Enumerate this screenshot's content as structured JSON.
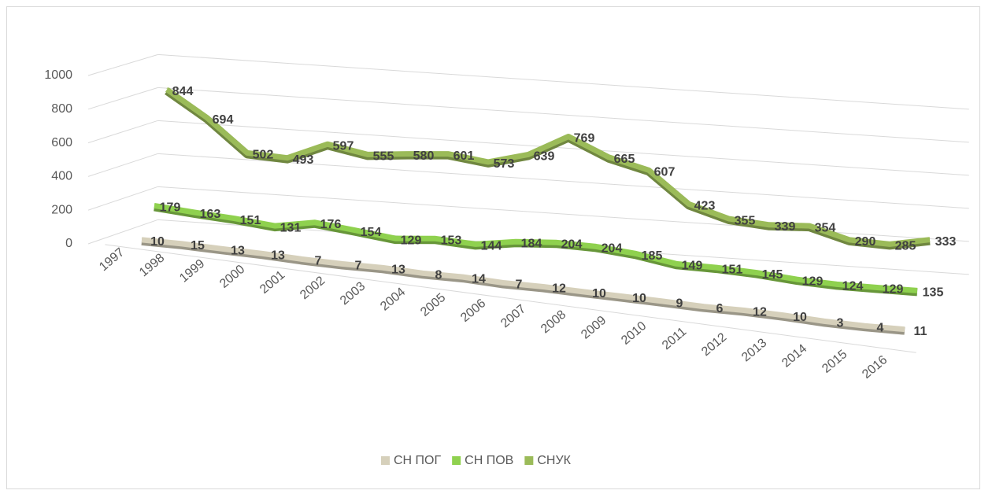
{
  "chart_data": {
    "type": "line3d",
    "categories": [
      "1997",
      "1998",
      "1999",
      "2000",
      "2001",
      "2002",
      "2003",
      "2004",
      "2005",
      "2006",
      "2007",
      "2008",
      "2009",
      "2010",
      "2011",
      "2012",
      "2013",
      "2014",
      "2015",
      "2016"
    ],
    "series": [
      {
        "name": "СН ПОГ",
        "color": "#d6d0bb",
        "values": [
          10,
          15,
          13,
          13,
          7,
          7,
          13,
          8,
          14,
          7,
          12,
          10,
          10,
          9,
          6,
          12,
          10,
          3,
          4,
          11
        ]
      },
      {
        "name": "СН ПОВ",
        "color": "#8fd14f",
        "values": [
          179,
          163,
          151,
          131,
          176,
          154,
          129,
          153,
          144,
          184,
          204,
          204,
          185,
          149,
          151,
          145,
          129,
          124,
          129,
          135
        ]
      },
      {
        "name": "СНУК",
        "color": "#9bbb59",
        "values": [
          844,
          694,
          502,
          493,
          597,
          555,
          580,
          601,
          573,
          639,
          769,
          665,
          607,
          423,
          355,
          339,
          354,
          290,
          285,
          333
        ]
      }
    ],
    "ylim": [
      0,
      1000
    ],
    "yticks": [
      0,
      200,
      400,
      600,
      800,
      1000
    ],
    "grid": true,
    "legend": "bottom"
  }
}
